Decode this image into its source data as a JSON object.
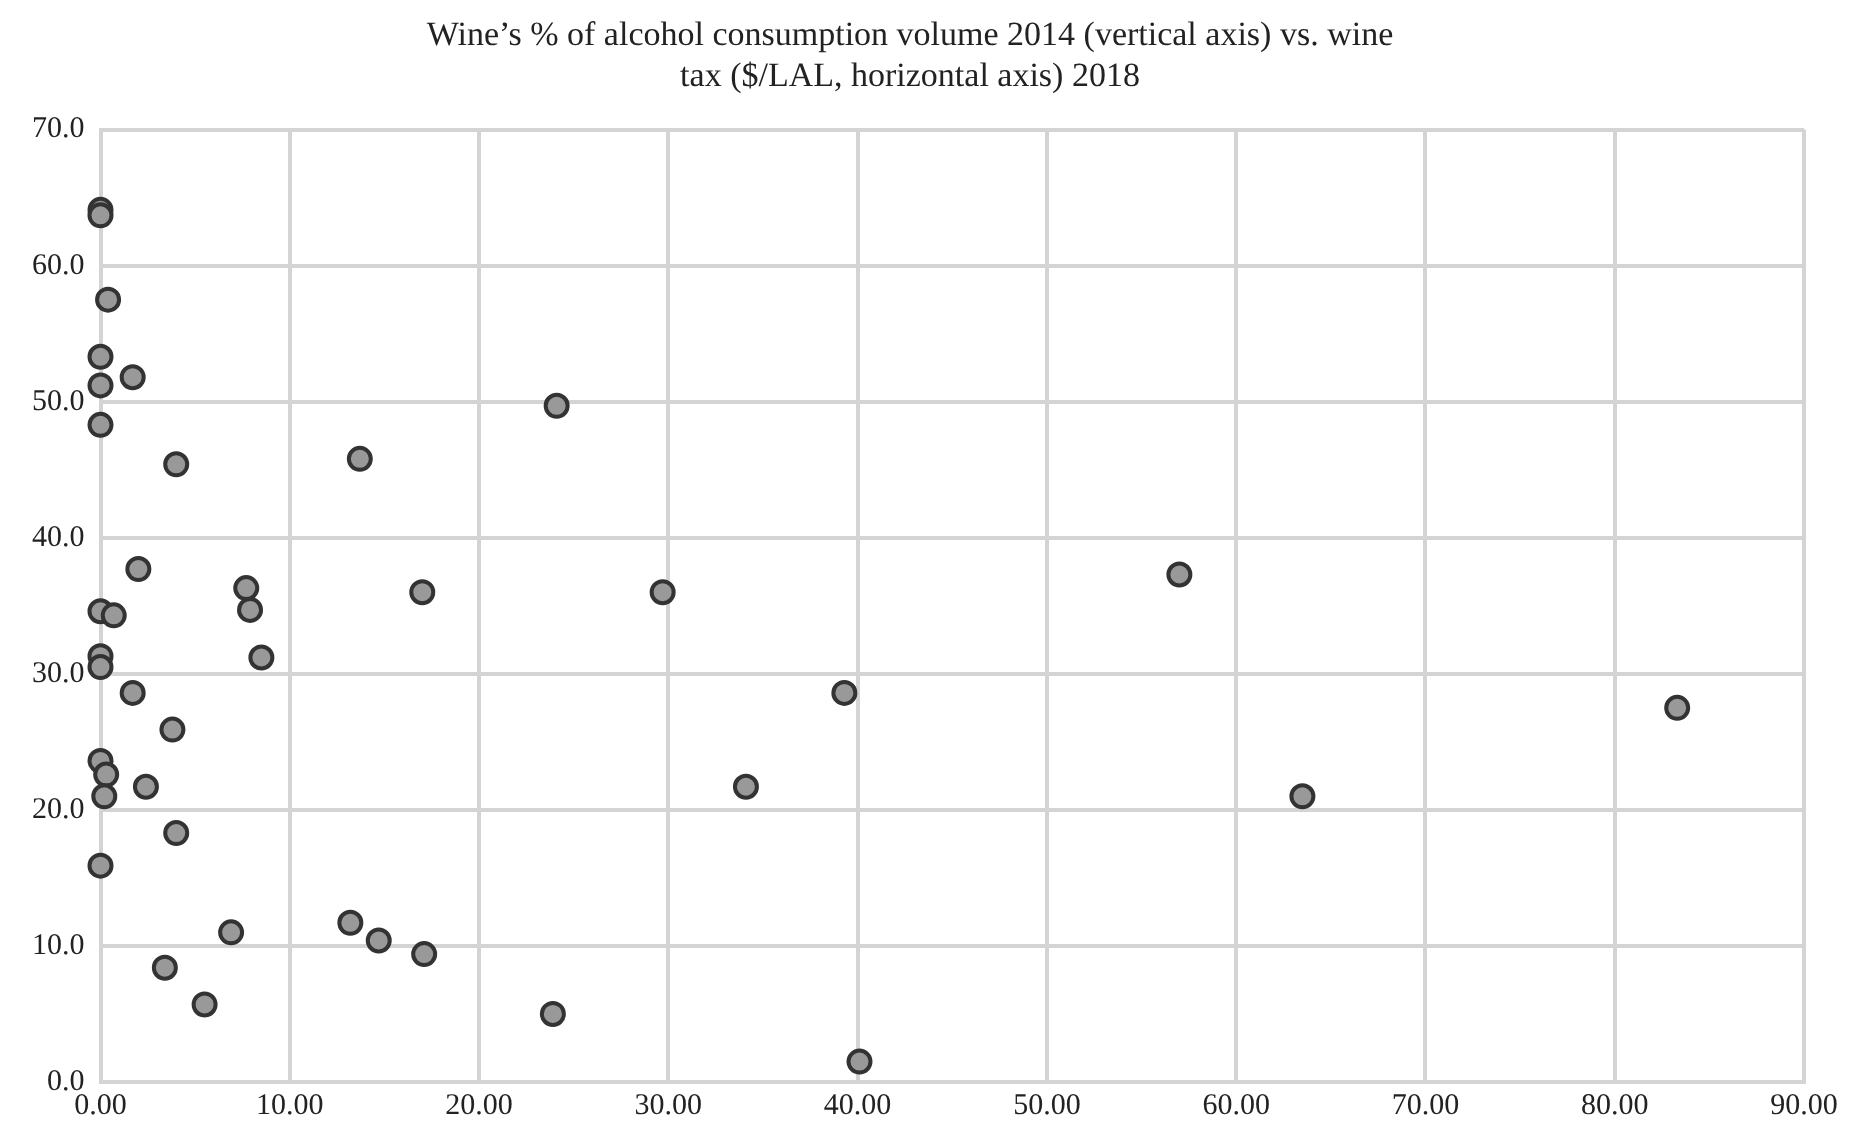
{
  "chart_data": {
    "type": "scatter",
    "title": [
      "Wine’s % of alcohol consumption volume 2014 (vertical axis) vs. wine",
      "tax ($/LAL, horizontal axis) 2018"
    ],
    "x": [
      0,
      0,
      0.4,
      0,
      0,
      1.7,
      0,
      4,
      13.7,
      24.1,
      2,
      7.7,
      7.9,
      8.5,
      17,
      29.7,
      0,
      0.7,
      0,
      0,
      1.7,
      3.8,
      0,
      0.3,
      0.2,
      2.4,
      4,
      0,
      6.9,
      13.2,
      14.7,
      17.1,
      3.4,
      5.5,
      23.9,
      40.1,
      34.1,
      39.3,
      57,
      63.5,
      83.3
    ],
    "values": [
      64.1,
      63.7,
      57.5,
      53.3,
      51.2,
      51.8,
      48.3,
      45.4,
      45.8,
      49.7,
      37.7,
      36.3,
      34.7,
      31.2,
      36,
      36,
      34.6,
      34.3,
      31.3,
      30.5,
      28.6,
      25.9,
      23.6,
      22.6,
      21,
      21.7,
      18.3,
      15.9,
      11,
      11.7,
      10.4,
      9.4,
      8.4,
      5.7,
      5,
      1.5,
      21.7,
      28.6,
      37.3,
      21,
      27.5
    ],
    "color": "#999999",
    "marker": "circle",
    "grid": true,
    "legend": false,
    "xlim": [
      0,
      90
    ],
    "xticks": [
      {
        "value": 0,
        "label": "0.00"
      },
      {
        "value": 10,
        "label": "10.00"
      },
      {
        "value": 20,
        "label": "20.00"
      },
      {
        "value": 30,
        "label": "30.00"
      },
      {
        "value": 40,
        "label": "40.00"
      },
      {
        "value": 50,
        "label": "50.00"
      },
      {
        "value": 60,
        "label": "60.00"
      },
      {
        "value": 70,
        "label": "70.00"
      },
      {
        "value": 80,
        "label": "80.00"
      },
      {
        "value": 90,
        "label": "90.00"
      }
    ],
    "ylim": [
      0,
      70
    ],
    "yticks": [
      {
        "value": 0,
        "label": "0.0"
      },
      {
        "value": 10,
        "label": "10.0"
      },
      {
        "value": 20,
        "label": "20.0"
      },
      {
        "value": 30,
        "label": "30.0"
      },
      {
        "value": 40,
        "label": "40.0"
      },
      {
        "value": 50,
        "label": "50.0"
      },
      {
        "value": 60,
        "label": "60.0"
      },
      {
        "value": 70,
        "label": "70.0"
      }
    ]
  }
}
